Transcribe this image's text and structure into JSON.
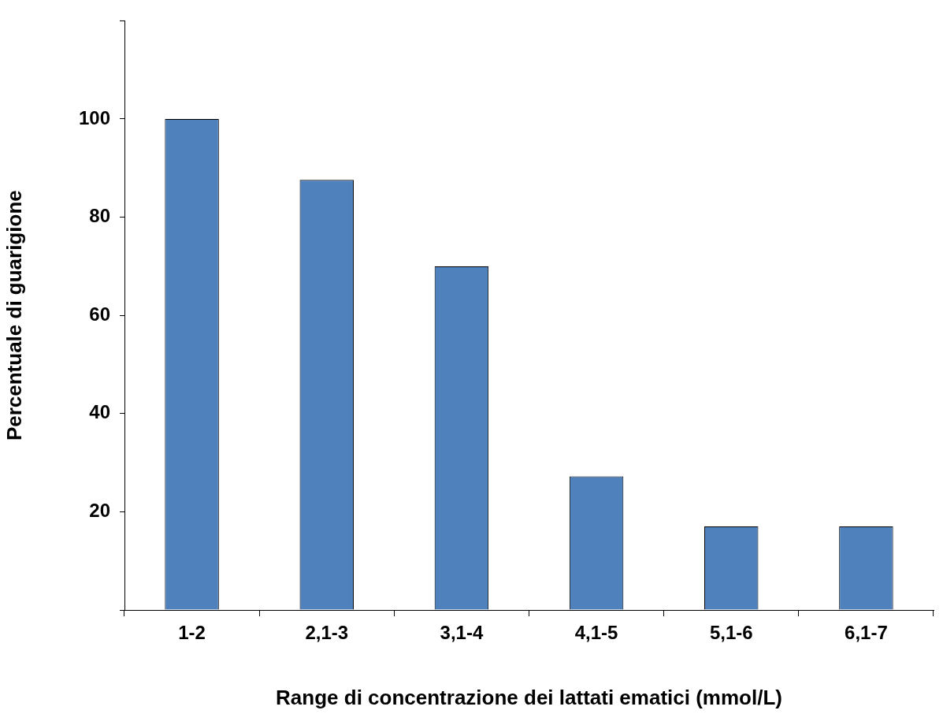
{
  "chart_data": {
    "type": "bar",
    "xlabel": "Range di concentrazione dei lattati ematici (mmol/L)",
    "ylabel": "Percentuale di guarigione",
    "categories": [
      "1-2",
      "2,1-3",
      "3,1-4",
      "4,1-5",
      "5,1-6",
      "6,1-7"
    ],
    "values": [
      100,
      87.6,
      70,
      27.2,
      17,
      17
    ],
    "color": "#4f81bd",
    "ylim": [
      0,
      120
    ],
    "yticks": [
      {
        "value": 0,
        "label": null
      },
      20,
      40,
      60,
      80,
      100,
      {
        "value": 120,
        "label": null
      }
    ],
    "grid": false,
    "legend": false
  }
}
